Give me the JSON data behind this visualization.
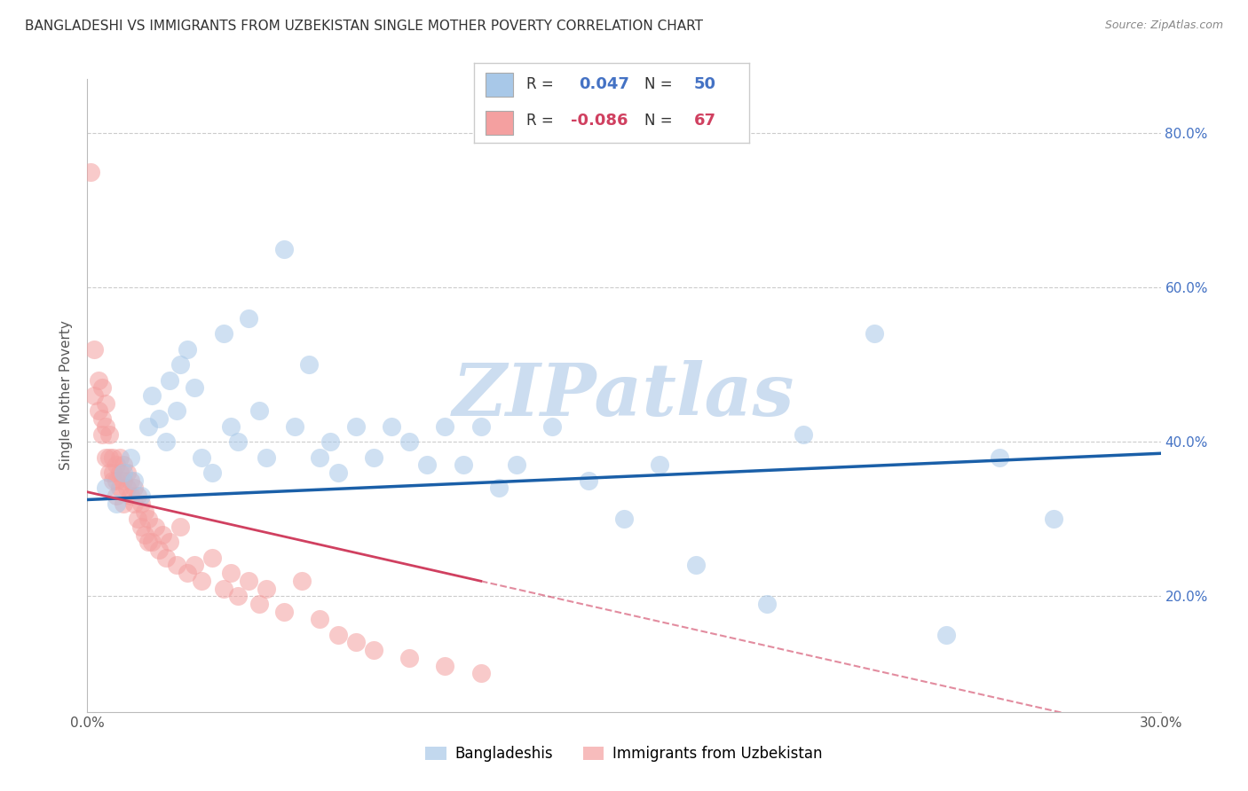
{
  "title": "BANGLADESHI VS IMMIGRANTS FROM UZBEKISTAN SINGLE MOTHER POVERTY CORRELATION CHART",
  "source": "Source: ZipAtlas.com",
  "ylabel": "Single Mother Poverty",
  "x_min": 0.0,
  "x_max": 0.3,
  "y_min": 0.05,
  "y_max": 0.87,
  "x_ticks": [
    0.0,
    0.05,
    0.1,
    0.15,
    0.2,
    0.25,
    0.3
  ],
  "x_tick_labels": [
    "0.0%",
    "",
    "",
    "",
    "",
    "",
    "30.0%"
  ],
  "y_ticks": [
    0.2,
    0.4,
    0.6,
    0.8
  ],
  "y_tick_labels": [
    "20.0%",
    "40.0%",
    "60.0%",
    "80.0%"
  ],
  "blue_color": "#a8c8e8",
  "pink_color": "#f4a0a0",
  "blue_line_color": "#1a5fa8",
  "pink_line_color": "#d04060",
  "legend_label_blue": "Bangladeshis",
  "legend_label_pink": "Immigrants from Uzbekistan",
  "watermark": "ZIPatlas",
  "blue_R": 0.047,
  "blue_N": 50,
  "pink_R": -0.086,
  "pink_N": 67,
  "blue_scatter_x": [
    0.005,
    0.008,
    0.01,
    0.012,
    0.013,
    0.015,
    0.017,
    0.018,
    0.02,
    0.022,
    0.023,
    0.025,
    0.026,
    0.028,
    0.03,
    0.032,
    0.035,
    0.038,
    0.04,
    0.042,
    0.045,
    0.048,
    0.05,
    0.055,
    0.058,
    0.062,
    0.065,
    0.068,
    0.07,
    0.075,
    0.08,
    0.085,
    0.09,
    0.095,
    0.1,
    0.105,
    0.11,
    0.115,
    0.12,
    0.13,
    0.14,
    0.15,
    0.16,
    0.17,
    0.19,
    0.2,
    0.22,
    0.24,
    0.255,
    0.27
  ],
  "blue_scatter_y": [
    0.34,
    0.32,
    0.36,
    0.38,
    0.35,
    0.33,
    0.42,
    0.46,
    0.43,
    0.4,
    0.48,
    0.44,
    0.5,
    0.52,
    0.47,
    0.38,
    0.36,
    0.54,
    0.42,
    0.4,
    0.56,
    0.44,
    0.38,
    0.65,
    0.42,
    0.5,
    0.38,
    0.4,
    0.36,
    0.42,
    0.38,
    0.42,
    0.4,
    0.37,
    0.42,
    0.37,
    0.42,
    0.34,
    0.37,
    0.42,
    0.35,
    0.3,
    0.37,
    0.24,
    0.19,
    0.41,
    0.54,
    0.15,
    0.38,
    0.3
  ],
  "pink_scatter_x": [
    0.001,
    0.002,
    0.002,
    0.003,
    0.003,
    0.004,
    0.004,
    0.004,
    0.005,
    0.005,
    0.005,
    0.006,
    0.006,
    0.006,
    0.007,
    0.007,
    0.007,
    0.008,
    0.008,
    0.008,
    0.009,
    0.009,
    0.009,
    0.01,
    0.01,
    0.01,
    0.011,
    0.011,
    0.012,
    0.012,
    0.013,
    0.013,
    0.014,
    0.014,
    0.015,
    0.015,
    0.016,
    0.016,
    0.017,
    0.017,
    0.018,
    0.019,
    0.02,
    0.021,
    0.022,
    0.023,
    0.025,
    0.026,
    0.028,
    0.03,
    0.032,
    0.035,
    0.038,
    0.04,
    0.042,
    0.045,
    0.048,
    0.05,
    0.055,
    0.06,
    0.065,
    0.07,
    0.075,
    0.08,
    0.09,
    0.1,
    0.11
  ],
  "pink_scatter_y": [
    0.75,
    0.52,
    0.46,
    0.48,
    0.44,
    0.43,
    0.41,
    0.47,
    0.45,
    0.42,
    0.38,
    0.38,
    0.36,
    0.41,
    0.38,
    0.36,
    0.35,
    0.37,
    0.35,
    0.33,
    0.36,
    0.34,
    0.38,
    0.35,
    0.32,
    0.37,
    0.34,
    0.36,
    0.33,
    0.35,
    0.32,
    0.34,
    0.33,
    0.3,
    0.32,
    0.29,
    0.31,
    0.28,
    0.3,
    0.27,
    0.27,
    0.29,
    0.26,
    0.28,
    0.25,
    0.27,
    0.24,
    0.29,
    0.23,
    0.24,
    0.22,
    0.25,
    0.21,
    0.23,
    0.2,
    0.22,
    0.19,
    0.21,
    0.18,
    0.22,
    0.17,
    0.15,
    0.14,
    0.13,
    0.12,
    0.11,
    0.1
  ],
  "background_color": "#ffffff",
  "grid_color": "#cccccc",
  "title_fontsize": 11,
  "axis_label_fontsize": 11,
  "tick_fontsize": 11,
  "watermark_color": "#ccddf0",
  "watermark_fontsize": 60,
  "blue_intercept": 0.325,
  "blue_slope_val": 0.2,
  "pink_intercept": 0.335,
  "pink_slope_val": -1.05
}
